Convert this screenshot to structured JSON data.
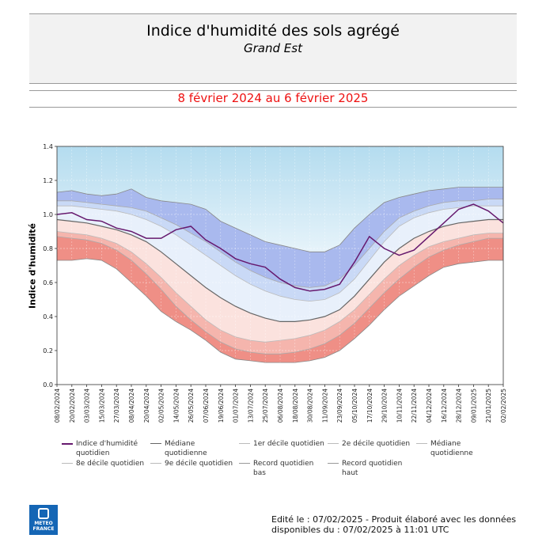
{
  "header": {
    "title": "Indice d'humidité des sols agrégé",
    "subtitle": "Grand Est",
    "period": "8 février 2024 au 6 février 2025"
  },
  "colors": {
    "record_band": "#cbe7f3",
    "high_band": "#a9b9ee",
    "mid_high_band": "#c9d9f6",
    "center_band": "#e8f0fb",
    "low_band": "#fbe2de",
    "lower_band": "#f5b5ad",
    "record_low_band": "#ef8f86",
    "index_line": "#66196e",
    "median_line": "#666666"
  },
  "legend": [
    {
      "label": "Indice d'humidité quotidien",
      "color": "#66196e"
    },
    {
      "label": "Médiane quotidienne",
      "color": "#666666"
    },
    {
      "label": "1er décile quotidien",
      "color": "#bbbbbb"
    },
    {
      "label": "2e décile quotidien",
      "color": "#bbbbbb"
    },
    {
      "label": "Médiane quotidienne",
      "color": "#bbbbbb"
    },
    {
      "label": "8e décile quotidien",
      "color": "#bbbbbb"
    },
    {
      "label": "9e décile quotidien",
      "color": "#bbbbbb"
    },
    {
      "label": "Record quotidien bas",
      "color": "#999999"
    },
    {
      "label": "Record quotidien haut",
      "color": "#999999"
    }
  ],
  "footer": {
    "line1": "Edité le : 07/02/2025 - Produit élaboré avec les données",
    "line2": "disponibles du : 07/02/2025 à 11:01 UTC"
  },
  "logo": {
    "line1": "METEO",
    "line2": "FRANCE"
  },
  "chart_data": {
    "type": "area",
    "xlabel": "",
    "ylabel": "Indice d'humidité",
    "ylim": [
      0.0,
      1.4
    ],
    "yticks": [
      "0.0",
      "0.2",
      "0.4",
      "0.6",
      "0.8",
      "1.0",
      "1.2",
      "1.4"
    ],
    "grid": true,
    "x": [
      "08/02/2024",
      "20/02/2024",
      "03/03/2024",
      "15/03/2024",
      "27/03/2024",
      "08/04/2024",
      "20/04/2024",
      "02/05/2024",
      "14/05/2024",
      "26/05/2024",
      "07/06/2024",
      "19/06/2024",
      "01/07/2024",
      "13/07/2024",
      "25/07/2024",
      "06/08/2024",
      "18/08/2024",
      "30/08/2024",
      "11/09/2024",
      "23/09/2024",
      "05/10/2024",
      "17/10/2024",
      "29/10/2024",
      "10/11/2024",
      "22/11/2024",
      "04/12/2024",
      "16/12/2024",
      "28/12/2024",
      "09/01/2025",
      "21/01/2025",
      "02/02/2025"
    ],
    "series": [
      {
        "name": "Record quotidien haut",
        "values": [
          1.13,
          1.14,
          1.12,
          1.11,
          1.12,
          1.15,
          1.1,
          1.08,
          1.07,
          1.06,
          1.03,
          0.96,
          0.92,
          0.88,
          0.84,
          0.82,
          0.8,
          0.78,
          0.78,
          0.82,
          0.92,
          1.0,
          1.07,
          1.1,
          1.12,
          1.14,
          1.15,
          1.16,
          1.16,
          1.16,
          1.16
        ]
      },
      {
        "name": "9e décile quotidien",
        "values": [
          1.08,
          1.08,
          1.07,
          1.06,
          1.05,
          1.04,
          1.02,
          0.98,
          0.94,
          0.89,
          0.84,
          0.78,
          0.72,
          0.67,
          0.63,
          0.6,
          0.58,
          0.57,
          0.58,
          0.62,
          0.7,
          0.8,
          0.9,
          0.98,
          1.02,
          1.05,
          1.07,
          1.08,
          1.08,
          1.09,
          1.09
        ]
      },
      {
        "name": "8e décile quotidien",
        "values": [
          1.05,
          1.05,
          1.04,
          1.03,
          1.02,
          1.0,
          0.97,
          0.93,
          0.88,
          0.82,
          0.76,
          0.7,
          0.64,
          0.59,
          0.55,
          0.52,
          0.5,
          0.49,
          0.5,
          0.54,
          0.62,
          0.73,
          0.84,
          0.93,
          0.98,
          1.01,
          1.03,
          1.04,
          1.05,
          1.05,
          1.05
        ]
      },
      {
        "name": "Médiane quotidienne",
        "values": [
          0.97,
          0.96,
          0.95,
          0.93,
          0.91,
          0.88,
          0.84,
          0.78,
          0.71,
          0.64,
          0.57,
          0.51,
          0.46,
          0.42,
          0.39,
          0.37,
          0.37,
          0.38,
          0.4,
          0.44,
          0.52,
          0.62,
          0.72,
          0.8,
          0.86,
          0.9,
          0.93,
          0.95,
          0.96,
          0.97,
          0.97
        ]
      },
      {
        "name": "2e décile quotidien",
        "values": [
          0.9,
          0.89,
          0.88,
          0.86,
          0.83,
          0.78,
          0.71,
          0.63,
          0.54,
          0.46,
          0.38,
          0.32,
          0.28,
          0.26,
          0.25,
          0.26,
          0.27,
          0.29,
          0.32,
          0.37,
          0.44,
          0.53,
          0.62,
          0.7,
          0.76,
          0.81,
          0.84,
          0.86,
          0.88,
          0.89,
          0.89
        ]
      },
      {
        "name": "1er décile quotidien",
        "values": [
          0.87,
          0.86,
          0.85,
          0.83,
          0.79,
          0.73,
          0.65,
          0.56,
          0.46,
          0.38,
          0.31,
          0.25,
          0.21,
          0.19,
          0.18,
          0.18,
          0.19,
          0.21,
          0.24,
          0.29,
          0.36,
          0.45,
          0.54,
          0.62,
          0.69,
          0.75,
          0.79,
          0.82,
          0.84,
          0.86,
          0.86
        ]
      },
      {
        "name": "Record quotidien bas",
        "values": [
          0.73,
          0.73,
          0.74,
          0.73,
          0.68,
          0.6,
          0.52,
          0.43,
          0.37,
          0.32,
          0.26,
          0.19,
          0.15,
          0.14,
          0.13,
          0.13,
          0.13,
          0.14,
          0.16,
          0.2,
          0.27,
          0.35,
          0.44,
          0.52,
          0.58,
          0.64,
          0.69,
          0.71,
          0.72,
          0.73,
          0.73
        ]
      },
      {
        "name": "Indice d'humidité quotidien",
        "values": [
          1.0,
          1.01,
          0.97,
          0.96,
          0.92,
          0.9,
          0.86,
          0.86,
          0.91,
          0.93,
          0.85,
          0.8,
          0.74,
          0.71,
          0.69,
          0.62,
          0.57,
          0.55,
          0.56,
          0.59,
          0.72,
          0.87,
          0.8,
          0.76,
          0.79,
          0.87,
          0.95,
          1.03,
          1.06,
          1.02,
          0.95
        ]
      }
    ]
  }
}
